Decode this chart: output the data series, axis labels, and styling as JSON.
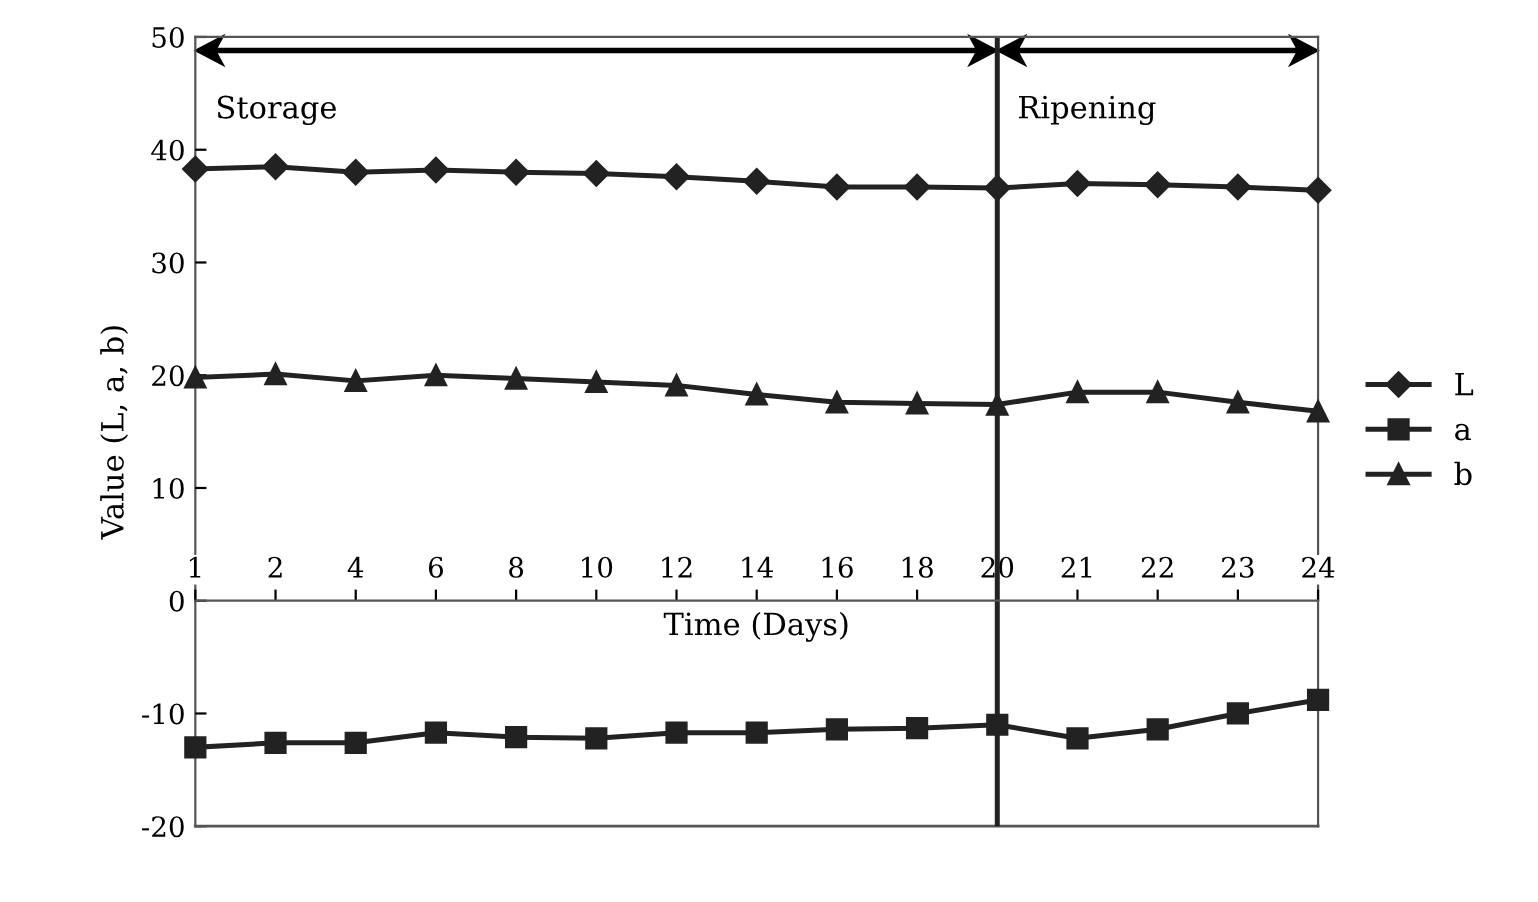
{
  "chart_data": {
    "type": "line",
    "xlabel": "Time (Days)",
    "ylabel": "Value (L, a, b)",
    "categories": [
      "1",
      "2",
      "4",
      "6",
      "8",
      "10",
      "12",
      "14",
      "16",
      "18",
      "20",
      "21",
      "22",
      "23",
      "24"
    ],
    "series": [
      {
        "name": "L",
        "color": "#222222",
        "marker": "diamond",
        "values": [
          38.3,
          38.5,
          38.0,
          38.2,
          38.0,
          37.9,
          37.6,
          37.2,
          36.7,
          36.7,
          36.6,
          37.0,
          36.9,
          36.7,
          36.4
        ]
      },
      {
        "name": "a",
        "color": "#222222",
        "marker": "square",
        "values": [
          -13.0,
          -12.6,
          -12.6,
          -11.7,
          -12.1,
          -12.2,
          -11.7,
          -11.7,
          -11.4,
          -11.3,
          -11.0,
          -12.2,
          -11.4,
          -10.0,
          -8.8
        ]
      },
      {
        "name": "b",
        "color": "#222222",
        "marker": "triangle",
        "values": [
          19.8,
          20.1,
          19.5,
          20.0,
          19.7,
          19.4,
          19.1,
          18.3,
          17.6,
          17.5,
          17.4,
          18.5,
          18.5,
          17.6,
          16.8
        ]
      }
    ],
    "ylim": [
      -20,
      50
    ],
    "yticks": [
      -20,
      -10,
      0,
      10,
      20,
      30,
      40,
      50
    ],
    "ref_lines": [
      {
        "axis": "x",
        "value": "20",
        "color": "#222222",
        "line_style": "solid"
      }
    ],
    "annotations": [
      "Storage",
      "Ripening"
    ],
    "grid": false,
    "legend": "right",
    "line_style": "solid"
  }
}
